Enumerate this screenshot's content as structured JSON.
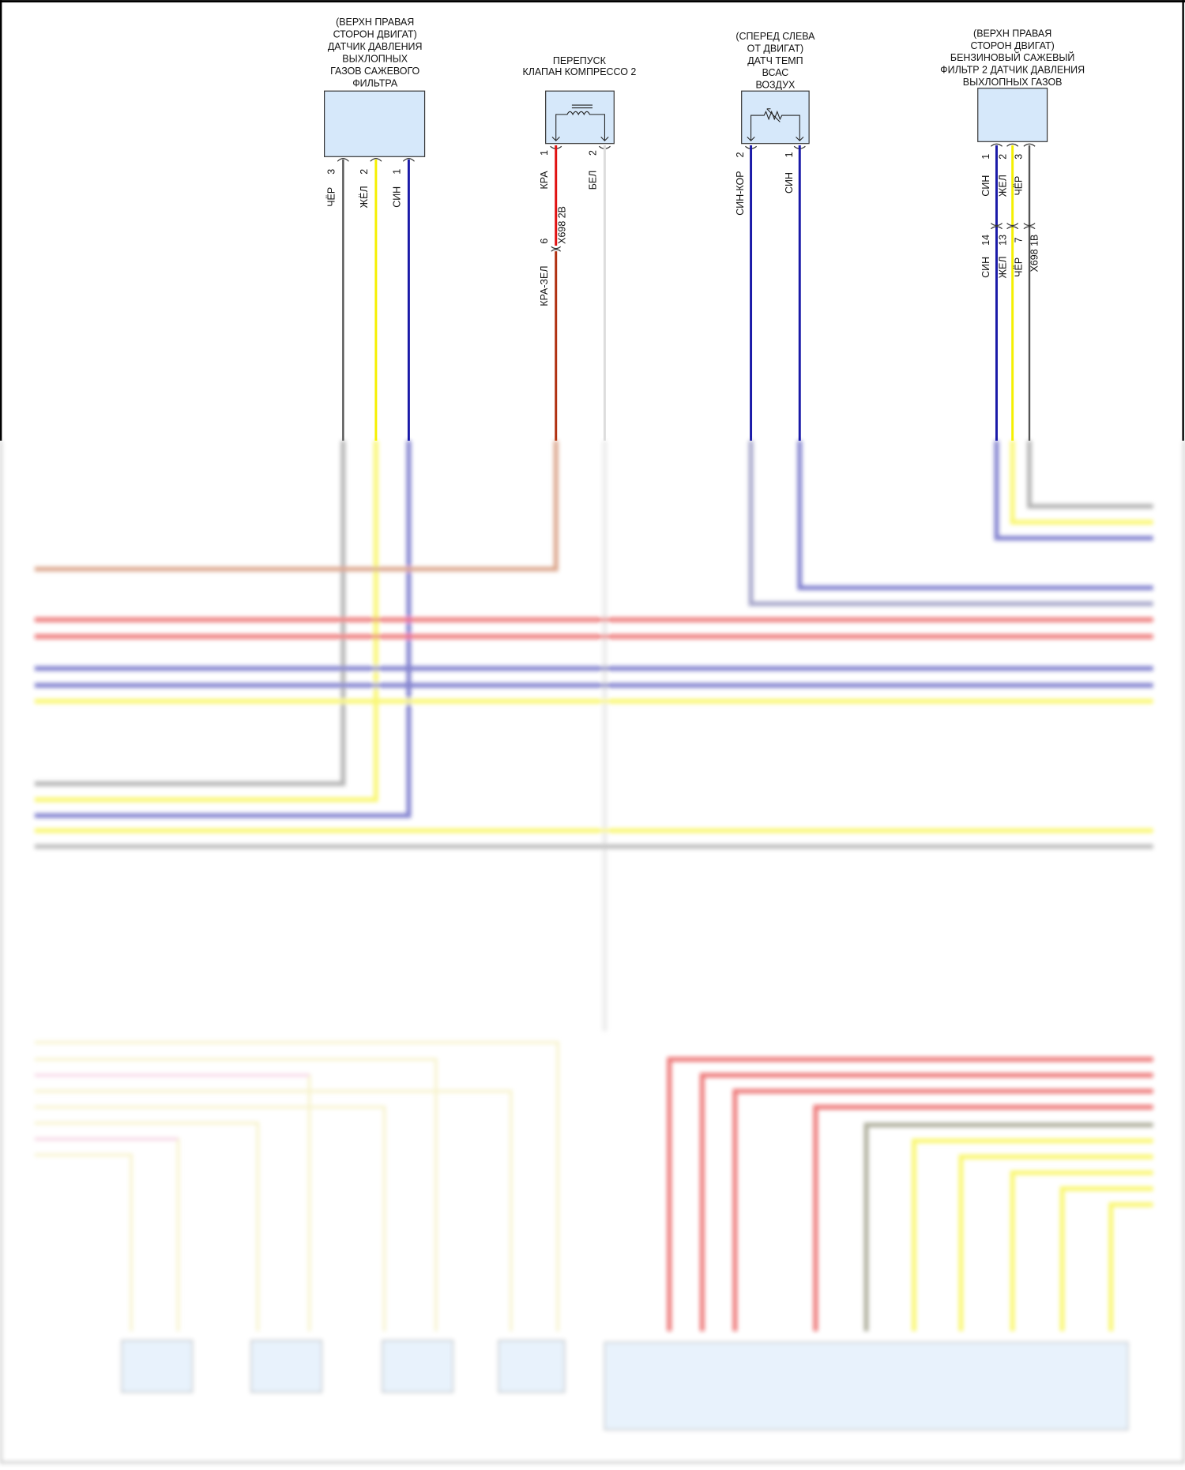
{
  "components": [
    {
      "title": [
        "(ВЕРХН ПРАВАЯ",
        "СТОРОН ДВИГАТ)",
        "ДАТЧИК ДАВЛЕНИЯ",
        "ВЫХЛОПНЫХ",
        "ГАЗОВ САЖЕВОГО",
        "ФИЛЬТРА"
      ],
      "pins": [
        {
          "num": "3",
          "wire": "ЧЁР"
        },
        {
          "num": "2",
          "wire": "ЖЁЛ"
        },
        {
          "num": "1",
          "wire": "СИН"
        }
      ]
    },
    {
      "title": [
        "ПЕРЕПУСК",
        "КЛАПАН КОМПРЕССО 2"
      ],
      "pins": [
        {
          "num": "1",
          "wire": "КРА"
        },
        {
          "num": "2",
          "wire": "БЕЛ"
        }
      ],
      "connector": {
        "name": "X698 2B",
        "pin": "6",
        "wire_after": "КРА-ЗЕЛ"
      }
    },
    {
      "title": [
        "(СПЕРЕД СЛЕВА",
        "ОТ ДВИГАТ)",
        "ДАТЧ ТЕМП",
        "ВСАС",
        "ВОЗДУХ"
      ],
      "pins": [
        {
          "num": "2",
          "wire": "СИН-КОР"
        },
        {
          "num": "1",
          "wire": "СИН"
        }
      ]
    },
    {
      "title": [
        "(ВЕРХН ПРАВАЯ",
        "СТОРОН ДВИГАТ)",
        "БЕНЗИНОВЫЙ САЖЕВЫЙ",
        "ФИЛЬТР 2 ДАТЧИК ДАВЛЕНИЯ",
        "ВЫХЛОПНЫХ ГАЗОВ"
      ],
      "pins": [
        {
          "num": "1",
          "wire": "СИН"
        },
        {
          "num": "2",
          "wire": "ЖЕЛ"
        },
        {
          "num": "3",
          "wire": "ЧЁР"
        }
      ],
      "connector": {
        "name": "X698 1B",
        "pins": [
          {
            "num": "14",
            "wire": "СИН"
          },
          {
            "num": "13",
            "wire": "ЖЕЛ"
          },
          {
            "num": "7",
            "wire": "ЧЁР"
          }
        ]
      }
    }
  ],
  "colors": {
    "black": "#555555",
    "yellow": "#f5f000",
    "blue": "#1a1aa8",
    "red": "#e01010",
    "red_green": "#b03010",
    "white": "#dddddd",
    "component_fill": "#d6e8fa"
  }
}
